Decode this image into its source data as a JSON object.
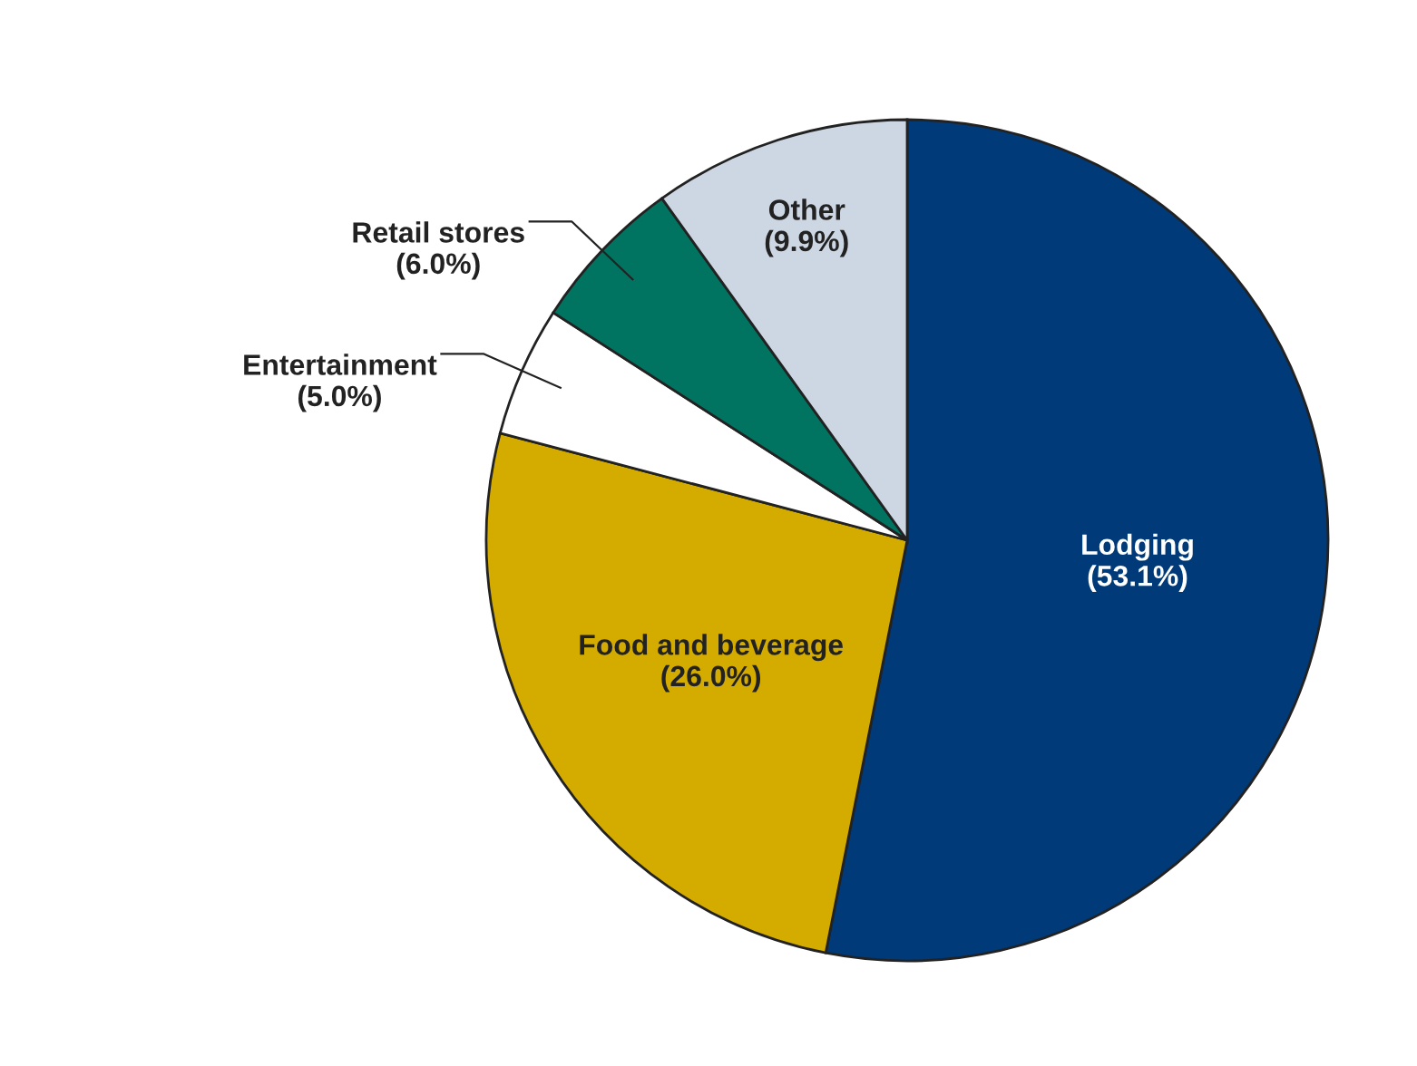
{
  "chart_data": {
    "type": "pie",
    "categories": [
      "Lodging",
      "Food and beverage",
      "Entertainment",
      "Retail stores",
      "Other"
    ],
    "values": [
      53.1,
      26.0,
      5.0,
      6.0,
      9.9
    ],
    "value_labels": [
      "(53.1%)",
      "(26.0%)",
      "(5.0%)",
      "(6.0%)",
      "(9.9%)"
    ],
    "colors": [
      "#003a78",
      "#d4ac00",
      "#ffffff",
      "#007460",
      "#cdd7e3"
    ],
    "legend": false
  }
}
